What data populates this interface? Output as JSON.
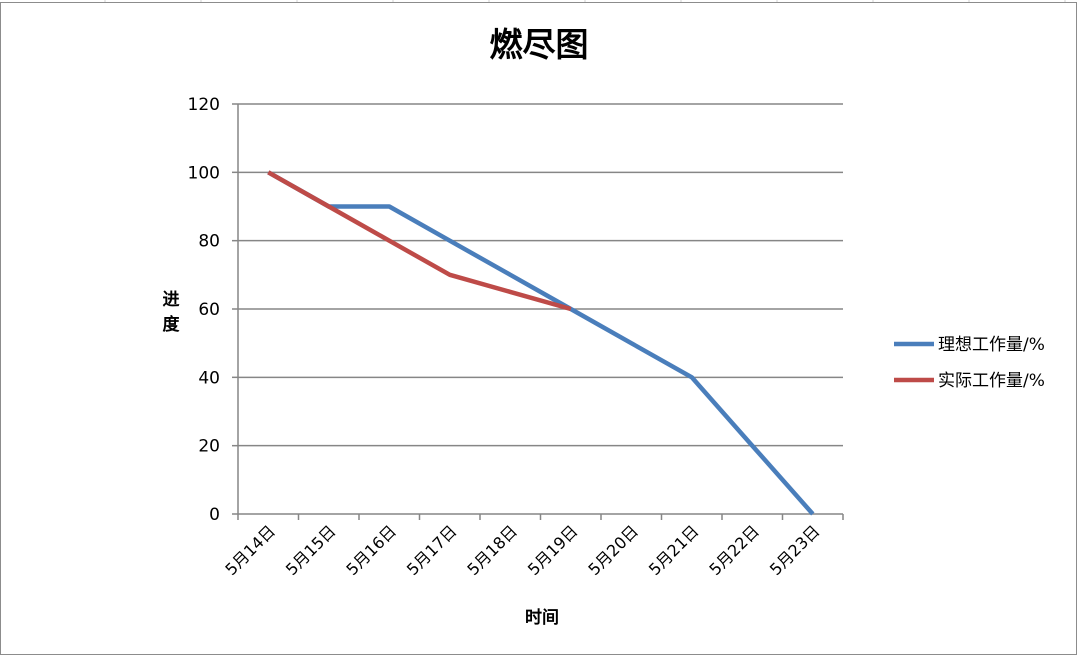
{
  "chart_data": {
    "type": "line",
    "title": "燃尽图",
    "xlabel": "时间",
    "ylabel": "进度",
    "categories": [
      "5月14日",
      "5月15日",
      "5月16日",
      "5月17日",
      "5月18日",
      "5月19日",
      "5月20日",
      "5月21日",
      "5月22日",
      "5月23日"
    ],
    "ylim": [
      0,
      120
    ],
    "yticks": [
      "0",
      "20",
      "40",
      "60",
      "80",
      "100",
      "120"
    ],
    "grid": true,
    "legend_position": "right",
    "series": [
      {
        "name": "理想工作量/%",
        "color": "#4a7ebb",
        "points": [
          [
            0,
            100
          ],
          [
            1,
            90
          ],
          [
            2,
            90
          ],
          [
            3,
            80
          ],
          [
            4,
            70
          ],
          [
            5,
            60
          ],
          [
            6,
            50
          ],
          [
            7,
            40
          ],
          [
            8,
            20
          ],
          [
            9,
            0
          ]
        ]
      },
      {
        "name": "实际工作量/%",
        "color": "#be4b48",
        "points": [
          [
            0,
            100
          ],
          [
            1,
            90
          ],
          [
            2,
            80
          ],
          [
            3,
            70
          ],
          [
            4,
            65
          ],
          [
            5,
            60
          ]
        ]
      }
    ]
  }
}
